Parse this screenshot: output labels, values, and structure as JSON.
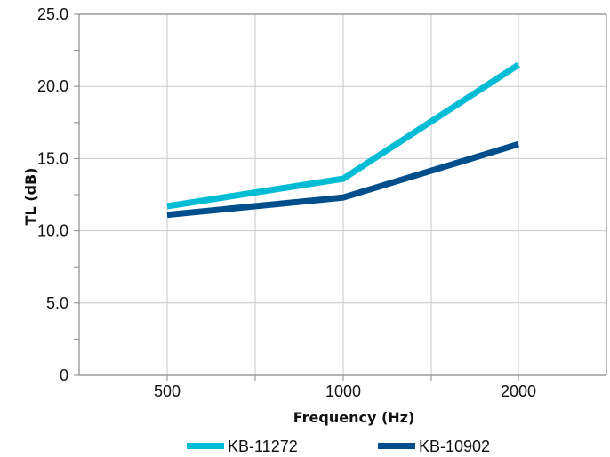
{
  "chart_data": {
    "type": "line",
    "title": "",
    "xlabel": "Frequency (Hz)",
    "ylabel": "TL (dB)",
    "x_categories": [
      "500",
      "1000",
      "2000"
    ],
    "ylim": [
      0,
      25
    ],
    "y_ticks": [
      "0",
      "5.0",
      "10.0",
      "15.0",
      "20.0",
      "25.0"
    ],
    "grid": true,
    "legend_position": "bottom",
    "series": [
      {
        "name": "KB-11272",
        "color": "#00BCD4",
        "values": [
          11.7,
          13.6,
          21.5
        ]
      },
      {
        "name": "KB-10902",
        "color": "#004F8C",
        "values": [
          11.1,
          12.3,
          16.0
        ]
      }
    ]
  }
}
